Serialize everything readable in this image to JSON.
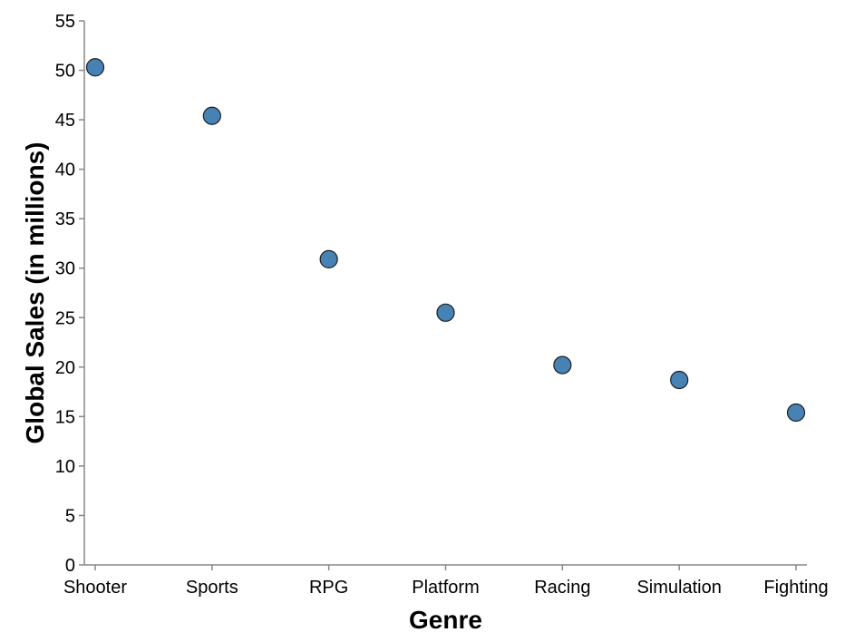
{
  "chart_data": {
    "type": "scatter",
    "title": "",
    "xlabel": "Genre",
    "ylabel": "Global Sales (in millions)",
    "categories": [
      "Shooter",
      "Sports",
      "RPG",
      "Platform",
      "Racing",
      "Simulation",
      "Fighting"
    ],
    "values": [
      50.3,
      45.4,
      30.9,
      25.5,
      20.2,
      18.7,
      15.4
    ],
    "ylim": [
      0,
      55
    ],
    "yticks": [
      0,
      5,
      10,
      15,
      20,
      25,
      30,
      35,
      40,
      45,
      50,
      55
    ],
    "grid": false,
    "legend": "none",
    "point_color": "#4682b4",
    "point_stroke": "#1f1f1f",
    "axis_color": "#888888"
  }
}
